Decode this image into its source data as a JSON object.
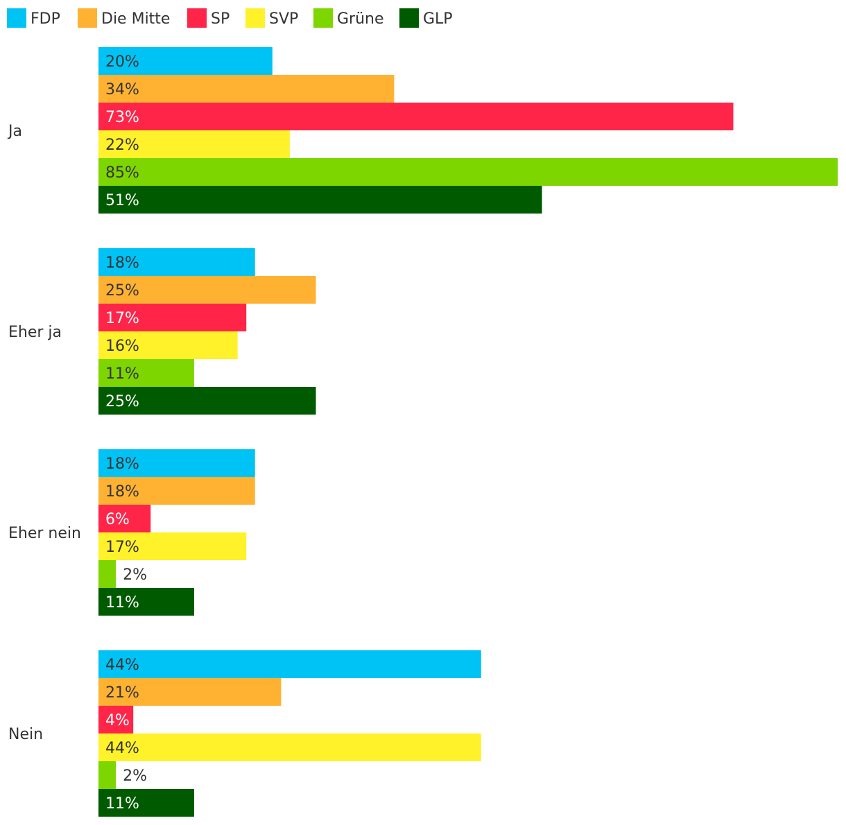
{
  "chart_data": {
    "type": "bar",
    "orientation": "horizontal",
    "title": "",
    "xlabel": "",
    "ylabel": "",
    "xlim": [
      0,
      85
    ],
    "grid": false,
    "legend_position": "top-left",
    "categories": [
      "Ja",
      "Eher ja",
      "Eher nein",
      "Nein"
    ],
    "series": [
      {
        "name": "FDP",
        "color": "#00c3f5",
        "label_color": "#333333",
        "values": [
          20,
          18,
          18,
          44
        ]
      },
      {
        "name": "Die Mitte",
        "color": "#ffb232",
        "label_color": "#333333",
        "values": [
          34,
          25,
          18,
          21
        ]
      },
      {
        "name": "SP",
        "color": "#ff2549",
        "label_color": "#ffffff",
        "values": [
          73,
          17,
          6,
          4
        ]
      },
      {
        "name": "SVP",
        "color": "#fff12a",
        "label_color": "#333333",
        "values": [
          22,
          16,
          17,
          44
        ]
      },
      {
        "name": "Grüne",
        "color": "#7ed600",
        "label_color": "#333333",
        "values": [
          85,
          11,
          2,
          2
        ]
      },
      {
        "name": "GLP",
        "color": "#005a00",
        "label_color": "#ffffff",
        "values": [
          51,
          25,
          11,
          11
        ]
      }
    ],
    "value_suffix": "%"
  }
}
